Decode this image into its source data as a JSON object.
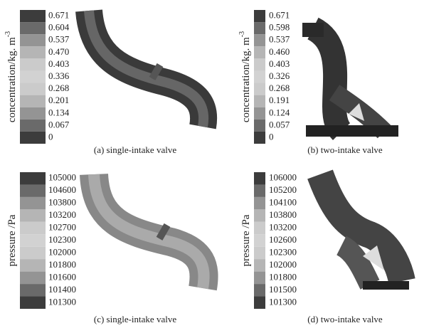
{
  "panels": [
    {
      "axis_label": "concentration/kg. m",
      "axis_label_sup": "-3",
      "legend_labels": [
        "0.671",
        "0.604",
        "0.537",
        "0.470",
        "0.403",
        "0.336",
        "0.268",
        "0.201",
        "0.134",
        "0.067",
        "0"
      ],
      "caption": "(a) single-intake valve"
    },
    {
      "axis_label": "concentration/kg. m",
      "axis_label_sup": "-3",
      "legend_labels": [
        "0.671",
        "0.598",
        "0.537",
        "0.460",
        "0.403",
        "0.326",
        "0.268",
        "0.191",
        "0.124",
        "0.057",
        "0"
      ],
      "caption": "(b) two-intake valve"
    },
    {
      "axis_label": "pressure /Pa",
      "legend_labels": [
        "105000",
        "104600",
        "103800",
        "103200",
        "102700",
        "102300",
        "102000",
        "101800",
        "101600",
        "101400",
        "101300"
      ],
      "caption": "(c) single-intake valve"
    },
    {
      "axis_label": "pressure /Pa",
      "legend_labels": [
        "106000",
        "105200",
        "104100",
        "103800",
        "103200",
        "102600",
        "102300",
        "102000",
        "101800",
        "101500",
        "101300"
      ],
      "caption": "(d) two-intake valve"
    }
  ]
}
